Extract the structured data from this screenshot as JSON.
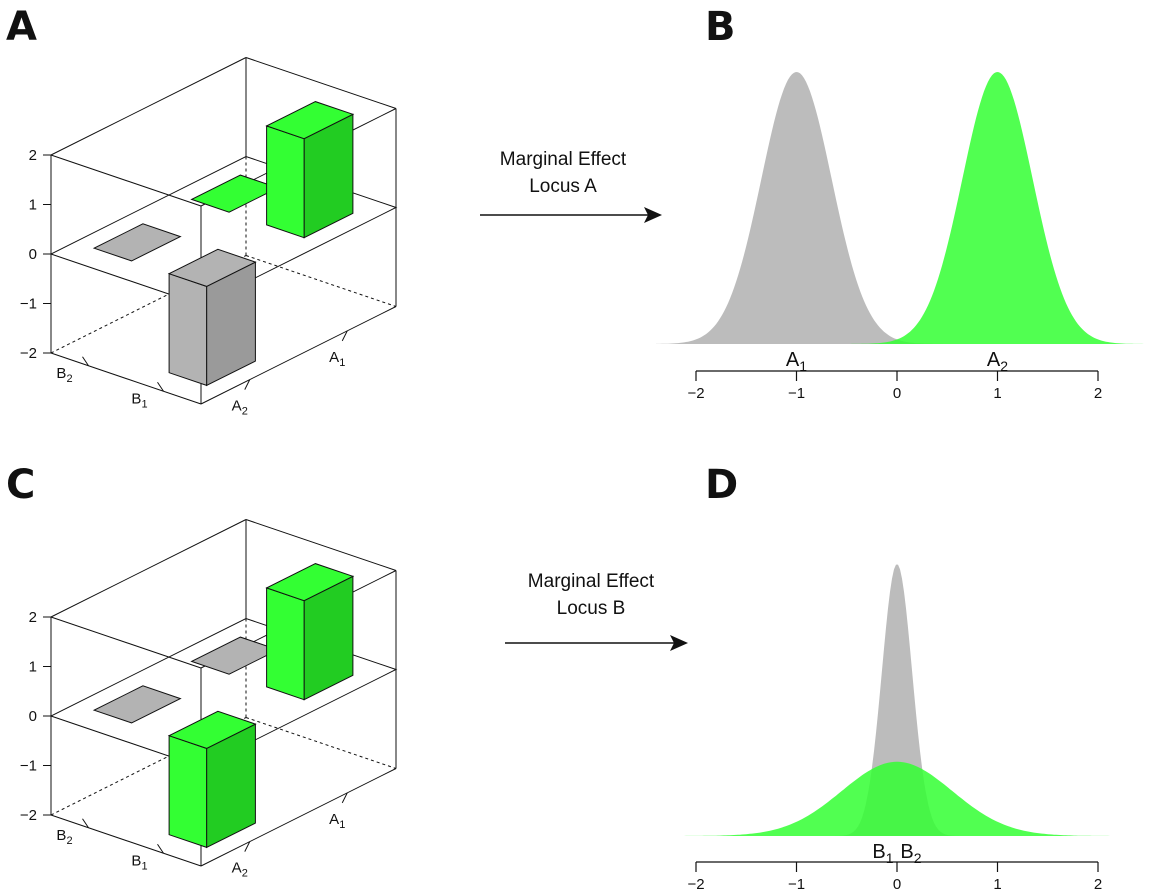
{
  "panels": {
    "a": "A",
    "b": "B",
    "c": "C",
    "d": "D"
  },
  "arrows": {
    "top": {
      "line1": "Marginal Effect",
      "line2": "Locus A"
    },
    "bottom": {
      "line1": "Marginal Effect",
      "line2": "Locus B"
    }
  },
  "colors": {
    "gray": "#b3b3b3",
    "gray_shade": "#9a9a9a",
    "green": "#33ff33",
    "green_shade": "#22cc22",
    "density_gray": "#b0b0b0",
    "density_green": "#33ff33"
  },
  "chart_data": [
    {
      "type": "bar",
      "subtype": "3d-bar",
      "panel": "A",
      "zlim": [
        -2,
        2
      ],
      "z_ticks": [
        -2,
        -1,
        0,
        1,
        2
      ],
      "z_tick_labels": [
        "−2",
        "−1",
        "0",
        "1",
        "2"
      ],
      "x_labels": [
        "A",
        "A"
      ],
      "x_label_subscripts": [
        "1",
        "2"
      ],
      "y_labels": [
        "B",
        "B"
      ],
      "y_label_subscripts": [
        "1",
        "2"
      ],
      "cells": [
        {
          "A": "A1",
          "B": "B1",
          "value": -2,
          "color": "gray"
        },
        {
          "A": "A1",
          "B": "B2",
          "value": 0,
          "color": "gray"
        },
        {
          "A": "A2",
          "B": "B1",
          "value": 2,
          "color": "green"
        },
        {
          "A": "A2",
          "B": "B2",
          "value": 0,
          "color": "green"
        }
      ]
    },
    {
      "type": "area",
      "subtype": "density",
      "panel": "B",
      "xlim": [
        -2,
        2
      ],
      "x_ticks": [
        -2,
        -1,
        0,
        1,
        2
      ],
      "x_tick_labels": [
        "−2",
        "−1",
        "0",
        "1",
        "2"
      ],
      "series": [
        {
          "label": "A",
          "label_sub": "1",
          "mean": -1,
          "sd": 0.35,
          "color": "gray"
        },
        {
          "label": "A",
          "label_sub": "2",
          "mean": 1,
          "sd": 0.35,
          "color": "green"
        }
      ]
    },
    {
      "type": "bar",
      "subtype": "3d-bar",
      "panel": "C",
      "zlim": [
        -2,
        2
      ],
      "z_ticks": [
        -2,
        -1,
        0,
        1,
        2
      ],
      "z_tick_labels": [
        "−2",
        "−1",
        "0",
        "1",
        "2"
      ],
      "x_labels": [
        "A",
        "A"
      ],
      "x_label_subscripts": [
        "1",
        "2"
      ],
      "y_labels": [
        "B",
        "B"
      ],
      "y_label_subscripts": [
        "1",
        "2"
      ],
      "cells": [
        {
          "A": "A1",
          "B": "B1",
          "value": -2,
          "color": "green"
        },
        {
          "A": "A1",
          "B": "B2",
          "value": 0,
          "color": "gray"
        },
        {
          "A": "A2",
          "B": "B1",
          "value": 2,
          "color": "green"
        },
        {
          "A": "A2",
          "B": "B2",
          "value": 0,
          "color": "gray"
        }
      ]
    },
    {
      "type": "area",
      "subtype": "density",
      "panel": "D",
      "xlim": [
        -2,
        2
      ],
      "x_ticks": [
        -2,
        -1,
        0,
        1,
        2
      ],
      "x_tick_labels": [
        "−2",
        "−1",
        "0",
        "1",
        "2"
      ],
      "series": [
        {
          "label": "B",
          "label_sub": "1",
          "mean": 0,
          "sd": 0.15,
          "color": "gray"
        },
        {
          "label": "B",
          "label_sub": "2",
          "mean": 0,
          "sd": 0.55,
          "color": "green"
        }
      ]
    }
  ]
}
